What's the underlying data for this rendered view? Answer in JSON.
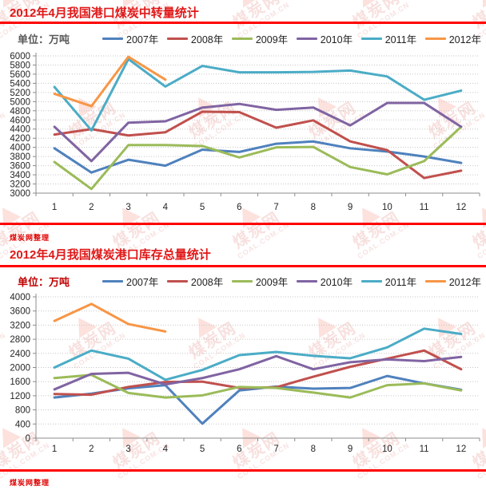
{
  "page": {
    "source_note": "煤炭网整理",
    "watermark": {
      "brand": "煤炭网",
      "domain": "COAL.COM.CN"
    },
    "accent_red": "#FF0000",
    "title_red": "#E01818"
  },
  "chart_data": [
    {
      "type": "line",
      "title": "2012年4月我国港口煤炭中转量统计",
      "unit_label": "单位：万吨",
      "xlabel": "",
      "ylabel": "万吨",
      "x": [
        1,
        2,
        3,
        4,
        5,
        6,
        7,
        8,
        9,
        10,
        11,
        12
      ],
      "ylim": [
        3000,
        6000
      ],
      "ytick_step": 200,
      "yticks": [
        3000,
        3200,
        3400,
        3600,
        3800,
        4000,
        4200,
        4400,
        4600,
        4800,
        5000,
        5200,
        5400,
        5600,
        5800,
        6000
      ],
      "grid": true,
      "legend_position": "top",
      "series": [
        {
          "name": "2007年",
          "color": "#4F81BD",
          "values": [
            3980,
            3450,
            3730,
            3600,
            3950,
            3900,
            4080,
            4130,
            3980,
            3910,
            3800,
            3660
          ]
        },
        {
          "name": "2008年",
          "color": "#C0504D",
          "values": [
            4280,
            4400,
            4260,
            4330,
            4780,
            4770,
            4430,
            4590,
            4130,
            3940,
            3330,
            3490
          ]
        },
        {
          "name": "2009年",
          "color": "#9BBB59",
          "values": [
            3680,
            3090,
            4050,
            4050,
            4030,
            3780,
            4000,
            4010,
            3570,
            3410,
            3700,
            4450
          ]
        },
        {
          "name": "2010年",
          "color": "#8064A2",
          "values": [
            4450,
            3700,
            4540,
            4570,
            4870,
            4950,
            4820,
            4870,
            4480,
            4970,
            4970,
            4450
          ]
        },
        {
          "name": "2011年",
          "color": "#4BACC6",
          "values": [
            5320,
            4370,
            5930,
            5330,
            5780,
            5640,
            5640,
            5650,
            5680,
            5550,
            5040,
            5240
          ]
        },
        {
          "name": "2012年",
          "color": "#F79646",
          "values": [
            5170,
            4900,
            5980,
            5480
          ]
        }
      ]
    },
    {
      "type": "line",
      "title": "2012年4月我国煤炭港口库存总量统计",
      "unit_label": "单位：万吨",
      "xlabel": "",
      "ylabel": "万吨",
      "x": [
        1,
        2,
        3,
        4,
        5,
        6,
        7,
        8,
        9,
        10,
        11,
        12
      ],
      "ylim": [
        0,
        4000
      ],
      "ytick_step": 400,
      "yticks": [
        0,
        400,
        800,
        1200,
        1600,
        2000,
        2400,
        2800,
        3200,
        3600,
        4000
      ],
      "grid": true,
      "legend_position": "top",
      "series": [
        {
          "name": "2007年",
          "color": "#4F81BD",
          "values": [
            1150,
            1260,
            1410,
            1500,
            410,
            1350,
            1460,
            1400,
            1420,
            1760,
            1550,
            1370
          ]
        },
        {
          "name": "2008年",
          "color": "#C0504D",
          "values": [
            1250,
            1230,
            1450,
            1590,
            1600,
            1420,
            1440,
            1740,
            2020,
            2250,
            2480,
            1950
          ]
        },
        {
          "name": "2009年",
          "color": "#9BBB59",
          "values": [
            1700,
            1790,
            1280,
            1150,
            1210,
            1450,
            1420,
            1290,
            1150,
            1500,
            1550,
            1350
          ]
        },
        {
          "name": "2010年",
          "color": "#8064A2",
          "values": [
            1380,
            1820,
            1850,
            1520,
            1700,
            1950,
            2320,
            1950,
            2150,
            2230,
            2180,
            2300
          ]
        },
        {
          "name": "2011年",
          "color": "#4BACC6",
          "values": [
            2000,
            2480,
            2250,
            1650,
            1930,
            2350,
            2440,
            2330,
            2260,
            2570,
            3100,
            2950
          ]
        },
        {
          "name": "2012年",
          "color": "#F79646",
          "values": [
            3320,
            3800,
            3230,
            3020
          ]
        }
      ]
    }
  ]
}
